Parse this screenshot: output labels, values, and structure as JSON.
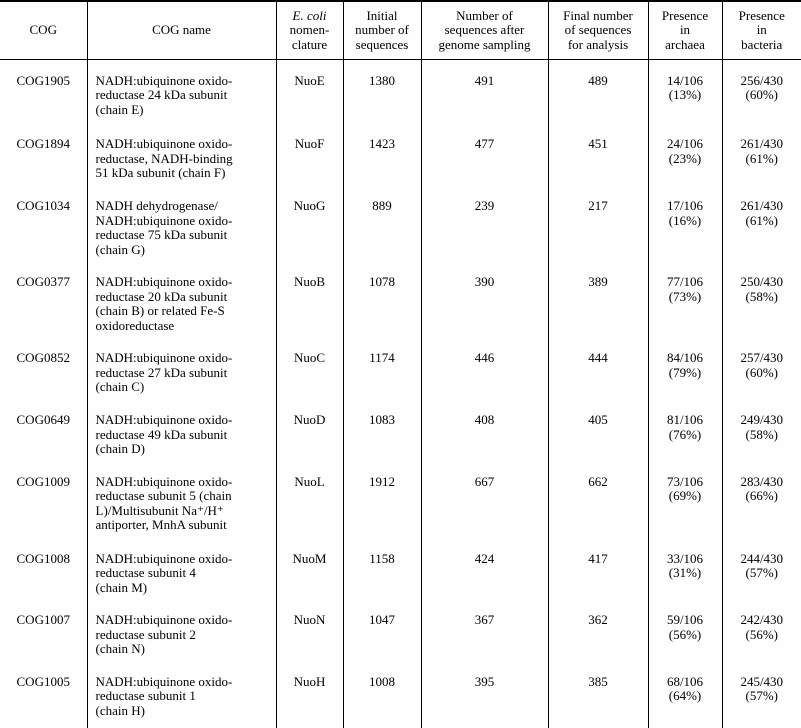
{
  "page": {
    "background": "#fefefe",
    "text_color": "#000000"
  },
  "table": {
    "columns": [
      {
        "id": "cog",
        "header_lines": [
          "COG"
        ]
      },
      {
        "id": "cog-name",
        "header_lines": [
          "COG name"
        ]
      },
      {
        "id": "ecoli-nomenclature",
        "header_lines": [
          "E. coli",
          "nomen-",
          "clature"
        ],
        "italic_line": 0
      },
      {
        "id": "initial-sequences",
        "header_lines": [
          "Initial",
          "number of",
          "sequences"
        ]
      },
      {
        "id": "after-sampling",
        "header_lines": [
          "Number of",
          "sequences after",
          "genome sampling"
        ]
      },
      {
        "id": "final-for-analysis",
        "header_lines": [
          "Final number",
          "of sequences",
          "for analysis"
        ]
      },
      {
        "id": "presence-archaea",
        "header_lines": [
          "Presence",
          "in",
          "archaea"
        ]
      },
      {
        "id": "presence-bacteria",
        "header_lines": [
          "Presence",
          "in",
          "bacteria"
        ]
      }
    ],
    "rows": [
      {
        "cog": "COG1905",
        "name_lines": [
          "NADH:ubiquinone oxido-",
          "reductase 24 kDa subunit",
          "(chain E)"
        ],
        "nomenclature": "NuoE",
        "initial_sequences": "1380",
        "after_sampling": "491",
        "final_for_analysis": "489",
        "archaea_lines": [
          "14/106",
          "(13%)"
        ],
        "bacteria_lines": [
          "256/430",
          "(60%)"
        ]
      },
      {
        "cog": "COG1894",
        "name_lines": [
          "NADH:ubiquinone oxido-",
          "reductase, NADH-binding",
          "51 kDa subunit (chain F)"
        ],
        "nomenclature": "NuoF",
        "initial_sequences": "1423",
        "after_sampling": "477",
        "final_for_analysis": "451",
        "archaea_lines": [
          "24/106",
          "(23%)"
        ],
        "bacteria_lines": [
          "261/430",
          "(61%)"
        ]
      },
      {
        "cog": "COG1034",
        "name_lines": [
          "NADH dehydrogenase/",
          "NADH:ubiquinone oxido-",
          "reductase 75 kDa subunit",
          "(chain G)"
        ],
        "nomenclature": "NuoG",
        "initial_sequences": "889",
        "after_sampling": "239",
        "final_for_analysis": "217",
        "archaea_lines": [
          "17/106",
          "(16%)"
        ],
        "bacteria_lines": [
          "261/430",
          "(61%)"
        ]
      },
      {
        "cog": "COG0377",
        "name_lines": [
          "NADH:ubiquinone oxido-",
          "reductase 20 kDa subunit",
          "(chain B) or related Fe-S",
          "oxidoreductase"
        ],
        "nomenclature": "NuoB",
        "initial_sequences": "1078",
        "after_sampling": "390",
        "final_for_analysis": "389",
        "archaea_lines": [
          "77/106",
          "(73%)"
        ],
        "bacteria_lines": [
          "250/430",
          "(58%)"
        ]
      },
      {
        "cog": "COG0852",
        "name_lines": [
          "NADH:ubiquinone oxido-",
          "reductase 27 kDa subunit",
          "(chain C)"
        ],
        "nomenclature": "NuoC",
        "initial_sequences": "1174",
        "after_sampling": "446",
        "final_for_analysis": "444",
        "archaea_lines": [
          "84/106",
          "(79%)"
        ],
        "bacteria_lines": [
          "257/430",
          "(60%)"
        ]
      },
      {
        "cog": "COG0649",
        "name_lines": [
          "NADH:ubiquinone oxido-",
          "reductase 49 kDa subunit",
          "(chain D)"
        ],
        "nomenclature": "NuoD",
        "initial_sequences": "1083",
        "after_sampling": "408",
        "final_for_analysis": "405",
        "archaea_lines": [
          "81/106",
          "(76%)"
        ],
        "bacteria_lines": [
          "249/430",
          "(58%)"
        ]
      },
      {
        "cog": "COG1009",
        "name_lines": [
          "NADH:ubiquinone oxido-",
          "reductase subunit 5 (chain",
          "L)/Multisubunit Na⁺/H⁺",
          "antiporter, MnhA subunit"
        ],
        "nomenclature": "NuoL",
        "initial_sequences": "1912",
        "after_sampling": "667",
        "final_for_analysis": "662",
        "archaea_lines": [
          "73/106",
          "(69%)"
        ],
        "bacteria_lines": [
          "283/430",
          "(66%)"
        ]
      },
      {
        "cog": "COG1008",
        "name_lines": [
          "NADH:ubiquinone oxido-",
          "reductase subunit 4",
          "(chain M)"
        ],
        "nomenclature": "NuoM",
        "initial_sequences": "1158",
        "after_sampling": "424",
        "final_for_analysis": "417",
        "archaea_lines": [
          "33/106",
          "(31%)"
        ],
        "bacteria_lines": [
          "244/430",
          "(57%)"
        ]
      },
      {
        "cog": "COG1007",
        "name_lines": [
          "NADH:ubiquinone oxido-",
          "reductase subunit 2",
          "(chain N)"
        ],
        "nomenclature": "NuoN",
        "initial_sequences": "1047",
        "after_sampling": "367",
        "final_for_analysis": "362",
        "archaea_lines": [
          "59/106",
          "(56%)"
        ],
        "bacteria_lines": [
          "242/430",
          "(56%)"
        ]
      },
      {
        "cog": "COG1005",
        "name_lines": [
          "NADH:ubiquinone oxido-",
          "reductase subunit 1",
          "(chain H)"
        ],
        "nomenclature": "NuoH",
        "initial_sequences": "1008",
        "after_sampling": "395",
        "final_for_analysis": "385",
        "archaea_lines": [
          "68/106",
          "(64%)"
        ],
        "bacteria_lines": [
          "245/430",
          "(57%)"
        ]
      }
    ]
  }
}
